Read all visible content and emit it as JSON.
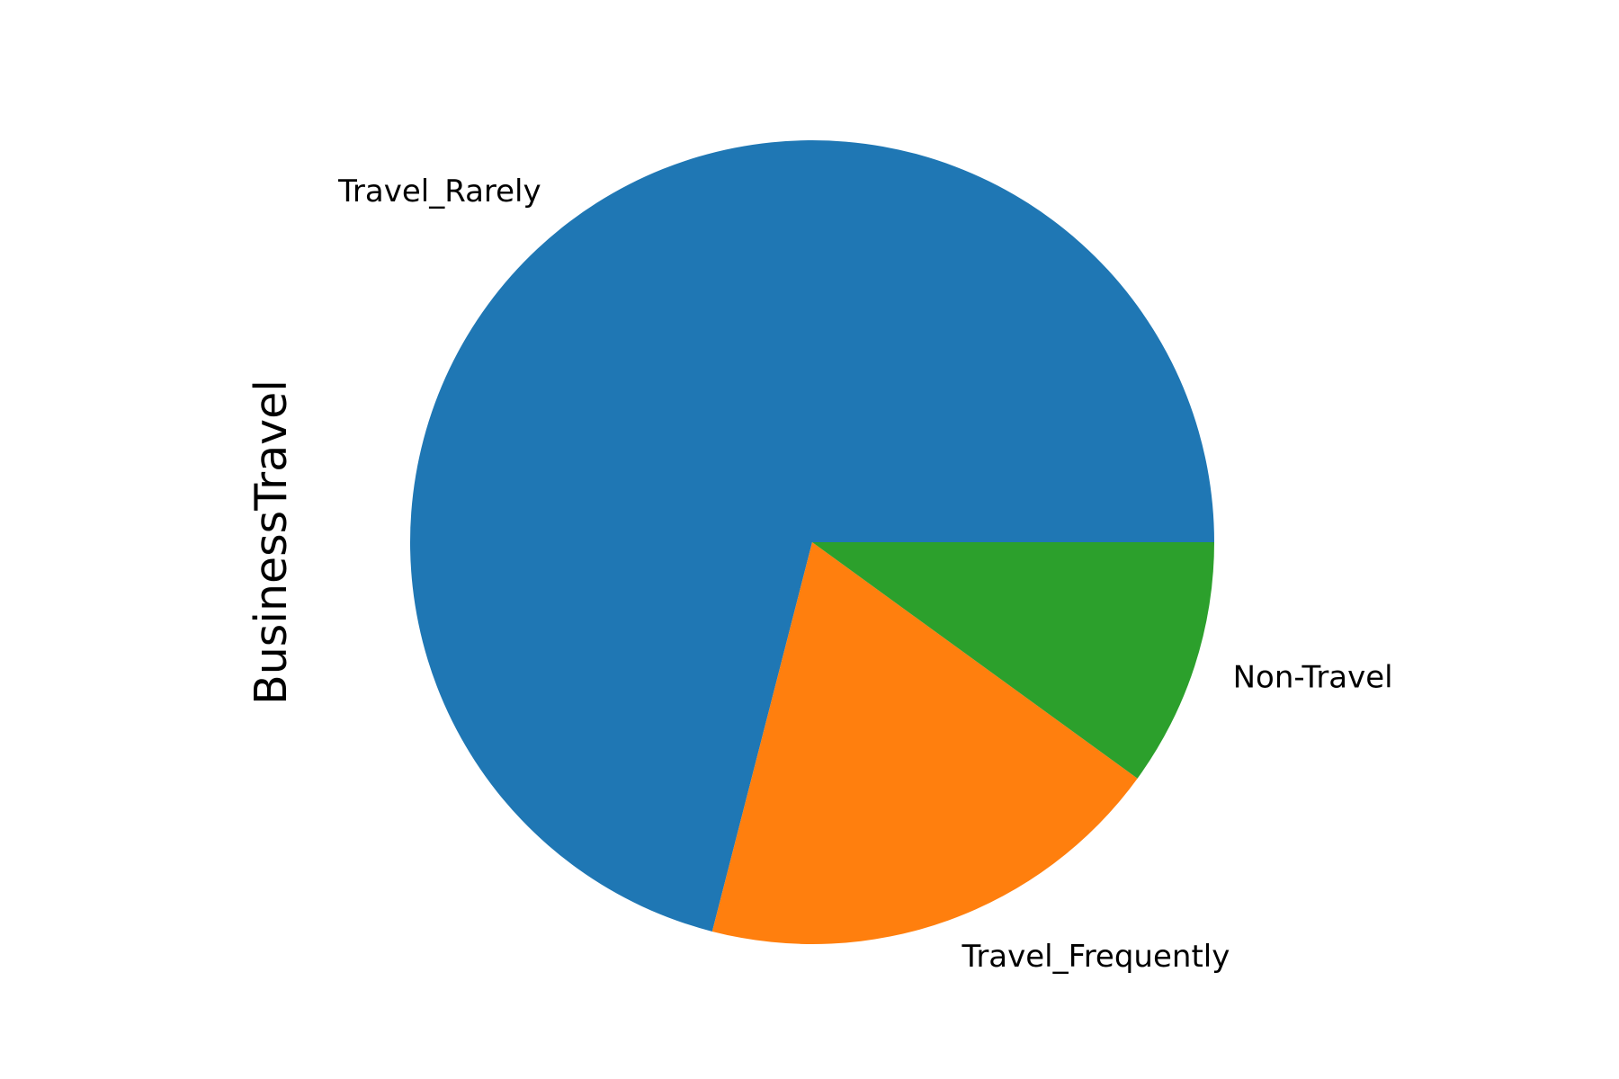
{
  "chart_data": {
    "type": "pie",
    "title": "",
    "ylabel": "BusinessTravel",
    "categories": [
      "Travel_Rarely",
      "Travel_Frequently",
      "Non-Travel"
    ],
    "values": [
      0.71,
      0.19,
      0.1
    ],
    "colors": [
      "#1f77b4",
      "#ff7f0e",
      "#2ca02c"
    ],
    "start_angle_deg": 0,
    "direction": "counterclockwise",
    "legend": "none"
  }
}
